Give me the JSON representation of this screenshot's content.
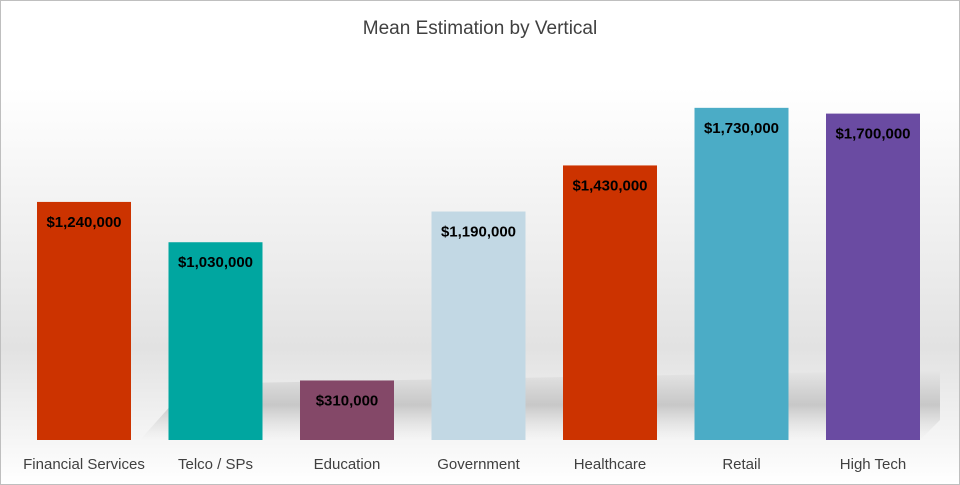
{
  "chart_data": {
    "type": "bar",
    "title": "Mean Estimation by Vertical",
    "xlabel": "",
    "ylabel": "",
    "categories": [
      "Financial Services",
      "Telco / SPs",
      "Education",
      "Government",
      "Healthcare",
      "Retail",
      "High Tech"
    ],
    "values": [
      1240000,
      1030000,
      310000,
      1190000,
      1430000,
      1730000,
      1700000
    ],
    "data_labels": [
      "$1,240,000",
      "$1,030,000",
      "$310,000",
      "$1,190,000",
      "$1,430,000",
      "$1,730,000",
      "$1,700,000"
    ],
    "colors": [
      "#CC3300",
      "#00A6A0",
      "#844868",
      "#C2D8E4",
      "#CC3300",
      "#4BACC6",
      "#6A4BA2"
    ],
    "ylim": [
      0,
      1750000
    ],
    "grid": false,
    "legend": "none"
  }
}
